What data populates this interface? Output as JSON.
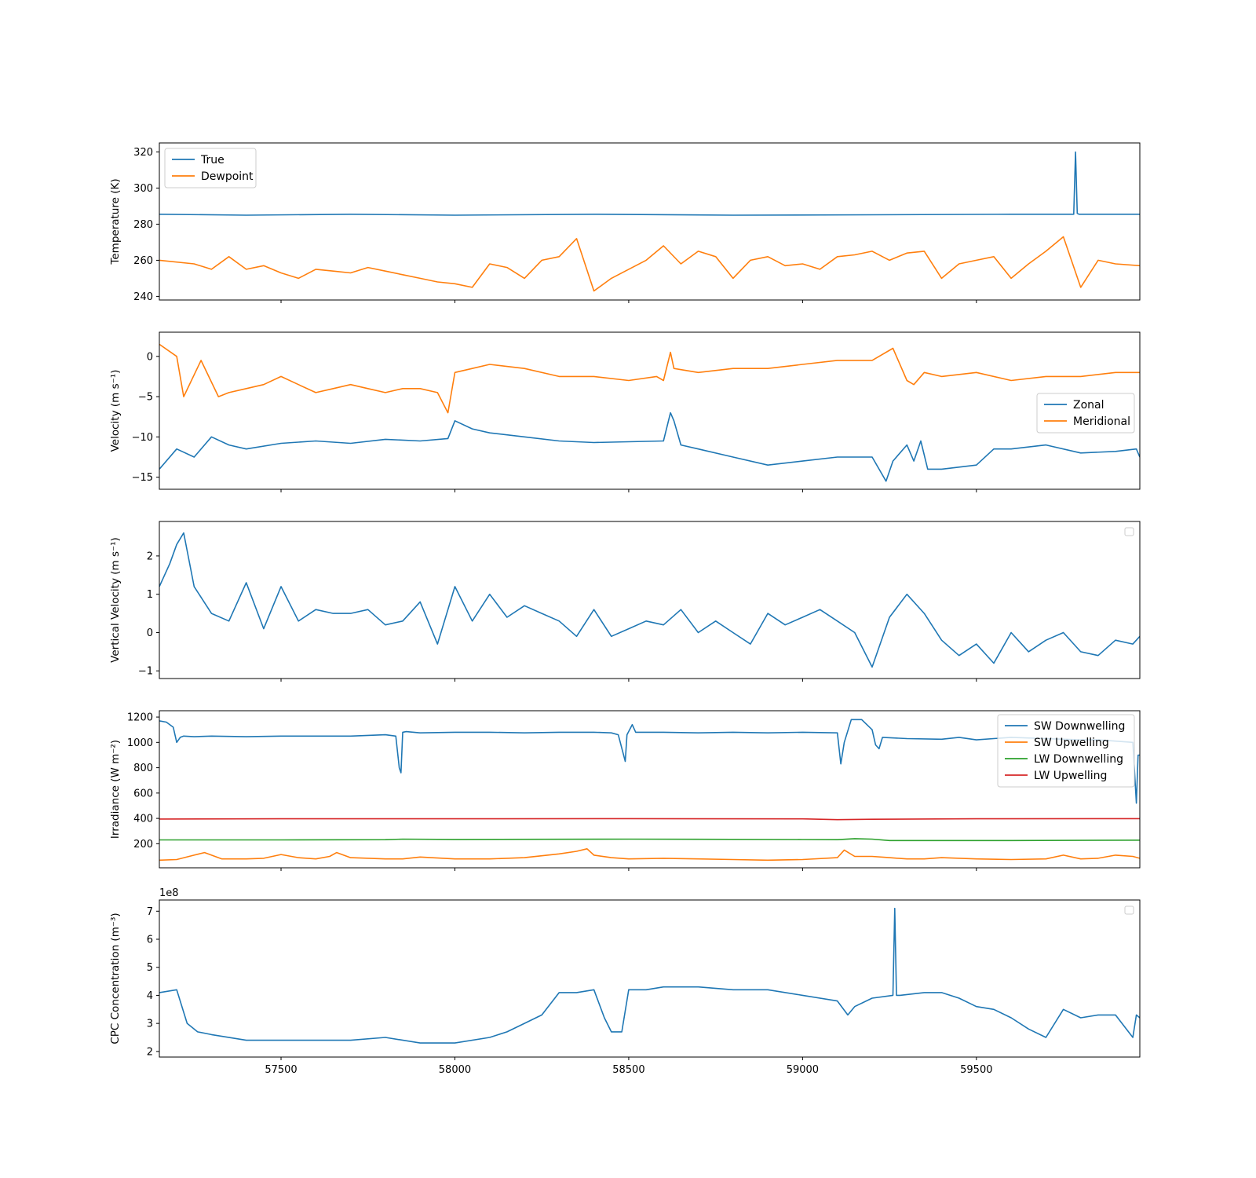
{
  "chart_data": [
    {
      "type": "line",
      "ylabel": "Temperature (K)",
      "xlim": [
        57150,
        59970
      ],
      "ylim": [
        238,
        325
      ],
      "yticks": [
        240,
        260,
        280,
        300,
        320
      ],
      "legend_position": "upper-left",
      "series": [
        {
          "name": "True",
          "color": "#1f77b4",
          "x": [
            57150,
            57400,
            57700,
            58000,
            58400,
            58800,
            59200,
            59600,
            59780,
            59785,
            59790,
            59795,
            59800,
            59970
          ],
          "y": [
            285.5,
            285,
            285.5,
            285,
            285.5,
            285,
            285.2,
            285.5,
            285.5,
            320,
            286,
            285.5,
            285.5,
            285.5
          ]
        },
        {
          "name": "Dewpoint",
          "color": "#ff7f0e",
          "x": [
            57150,
            57250,
            57300,
            57350,
            57400,
            57450,
            57500,
            57550,
            57600,
            57650,
            57700,
            57750,
            57800,
            57850,
            57900,
            57950,
            58000,
            58050,
            58100,
            58150,
            58200,
            58250,
            58300,
            58350,
            58400,
            58450,
            58500,
            58550,
            58600,
            58650,
            58700,
            58750,
            58800,
            58850,
            58900,
            58950,
            59000,
            59050,
            59100,
            59150,
            59200,
            59250,
            59300,
            59350,
            59400,
            59450,
            59500,
            59550,
            59600,
            59650,
            59700,
            59750,
            59800,
            59850,
            59900,
            59970
          ],
          "y": [
            260,
            258,
            255,
            262,
            255,
            257,
            253,
            250,
            255,
            254,
            253,
            256,
            254,
            252,
            250,
            248,
            247,
            245,
            258,
            256,
            250,
            260,
            262,
            272,
            243,
            250,
            255,
            260,
            268,
            258,
            265,
            262,
            250,
            260,
            262,
            257,
            258,
            255,
            262,
            263,
            265,
            260,
            264,
            265,
            250,
            258,
            260,
            262,
            250,
            258,
            265,
            273,
            245,
            260,
            258,
            257
          ]
        }
      ]
    },
    {
      "type": "line",
      "ylabel": "Velocity (m s⁻¹)",
      "xlim": [
        57150,
        59970
      ],
      "ylim": [
        -16.5,
        3
      ],
      "yticks": [
        0,
        -5,
        -10,
        -15
      ],
      "legend_position": "center-right",
      "series": [
        {
          "name": "Zonal",
          "color": "#1f77b4",
          "x": [
            57150,
            57200,
            57250,
            57300,
            57350,
            57400,
            57500,
            57600,
            57700,
            57800,
            57900,
            57980,
            58000,
            58050,
            58100,
            58200,
            58300,
            58400,
            58500,
            58600,
            58620,
            58630,
            58650,
            58700,
            58800,
            58900,
            59000,
            59100,
            59200,
            59240,
            59260,
            59300,
            59320,
            59340,
            59360,
            59400,
            59500,
            59550,
            59600,
            59700,
            59800,
            59900,
            59960,
            59970
          ],
          "y": [
            -14,
            -11.5,
            -12.5,
            -10,
            -11,
            -11.5,
            -10.8,
            -10.5,
            -10.8,
            -10.3,
            -10.5,
            -10.2,
            -8,
            -9,
            -9.5,
            -10,
            -10.5,
            -10.7,
            -10.6,
            -10.5,
            -7,
            -8,
            -11,
            -11.5,
            -12.5,
            -13.5,
            -13,
            -12.5,
            -12.5,
            -15.5,
            -13,
            -11,
            -13,
            -10.5,
            -14,
            -14,
            -13.5,
            -11.5,
            -11.5,
            -11,
            -12,
            -11.8,
            -11.5,
            -12.5
          ]
        },
        {
          "name": "Meridional",
          "color": "#ff7f0e",
          "x": [
            57150,
            57200,
            57220,
            57270,
            57320,
            57350,
            57400,
            57450,
            57500,
            57550,
            57600,
            57650,
            57700,
            57750,
            57800,
            57850,
            57900,
            57950,
            57980,
            58000,
            58050,
            58100,
            58200,
            58300,
            58400,
            58500,
            58580,
            58600,
            58620,
            58630,
            58700,
            58800,
            58900,
            59000,
            59100,
            59200,
            59260,
            59300,
            59320,
            59350,
            59400,
            59500,
            59600,
            59700,
            59800,
            59900,
            59950,
            59970
          ],
          "y": [
            1.5,
            0,
            -5,
            -0.5,
            -5,
            -4.5,
            -4,
            -3.5,
            -2.5,
            -3.5,
            -4.5,
            -4,
            -3.5,
            -4,
            -4.5,
            -4,
            -4,
            -4.5,
            -7,
            -2,
            -1.5,
            -1,
            -1.5,
            -2.5,
            -2.5,
            -3,
            -2.5,
            -3,
            0.5,
            -1.5,
            -2,
            -1.5,
            -1.5,
            -1,
            -0.5,
            -0.5,
            1,
            -3,
            -3.5,
            -2,
            -2.5,
            -2,
            -3,
            -2.5,
            -2.5,
            -2,
            -2,
            -2
          ]
        }
      ]
    },
    {
      "type": "line",
      "ylabel": "Vertical Velocity (m s⁻¹)",
      "xlim": [
        57150,
        59970
      ],
      "ylim": [
        -1.2,
        2.9
      ],
      "yticks": [
        2,
        1,
        0,
        -1
      ],
      "legend_position": "upper-right",
      "series": [
        {
          "color": "#1f77b4",
          "x": [
            57150,
            57180,
            57200,
            57220,
            57250,
            57300,
            57350,
            57400,
            57450,
            57500,
            57550,
            57600,
            57650,
            57700,
            57750,
            57800,
            57850,
            57900,
            57950,
            58000,
            58050,
            58100,
            58150,
            58200,
            58250,
            58300,
            58350,
            58400,
            58450,
            58500,
            58550,
            58600,
            58650,
            58700,
            58750,
            58800,
            58850,
            58900,
            58950,
            59000,
            59050,
            59100,
            59150,
            59200,
            59250,
            59300,
            59350,
            59400,
            59450,
            59500,
            59550,
            59600,
            59650,
            59700,
            59750,
            59800,
            59850,
            59900,
            59950,
            59970
          ],
          "y": [
            1.2,
            1.8,
            2.3,
            2.6,
            1.2,
            0.5,
            0.3,
            1.3,
            0.1,
            1.2,
            0.3,
            0.6,
            0.5,
            0.5,
            0.6,
            0.2,
            0.3,
            0.8,
            -0.3,
            1.2,
            0.3,
            1.0,
            0.4,
            0.7,
            0.5,
            0.3,
            -0.1,
            0.6,
            -0.1,
            0.1,
            0.3,
            0.2,
            0.6,
            0,
            0.3,
            0,
            -0.3,
            0.5,
            0.2,
            0.4,
            0.6,
            0.3,
            0,
            -0.9,
            0.4,
            1.0,
            0.5,
            -0.2,
            -0.6,
            -0.3,
            -0.8,
            0,
            -0.5,
            -0.2,
            0,
            -0.5,
            -0.6,
            -0.2,
            -0.3,
            -0.1
          ]
        }
      ]
    },
    {
      "type": "line",
      "ylabel": "Irradiance (W m⁻²)",
      "xlim": [
        57150,
        59970
      ],
      "ylim": [
        10,
        1250
      ],
      "yticks": [
        1200,
        1000,
        800,
        600,
        400,
        200
      ],
      "legend_position": "upper-right",
      "series": [
        {
          "name": "SW Downwelling",
          "color": "#1f77b4",
          "x": [
            57150,
            57170,
            57190,
            57200,
            57210,
            57220,
            57250,
            57300,
            57400,
            57500,
            57600,
            57700,
            57800,
            57830,
            57840,
            57845,
            57850,
            57860,
            57900,
            58000,
            58100,
            58200,
            58300,
            58400,
            58450,
            58470,
            58490,
            58495,
            58510,
            58520,
            58600,
            58700,
            58800,
            58900,
            59000,
            59100,
            59110,
            59120,
            59140,
            59170,
            59200,
            59210,
            59220,
            59230,
            59300,
            59400,
            59450,
            59500,
            59600,
            59700,
            59800,
            59850,
            59900,
            59950,
            59960,
            59965,
            59970
          ],
          "y": [
            1170,
            1160,
            1120,
            1000,
            1040,
            1050,
            1045,
            1050,
            1045,
            1050,
            1050,
            1050,
            1060,
            1050,
            800,
            760,
            1080,
            1085,
            1075,
            1080,
            1080,
            1075,
            1080,
            1080,
            1075,
            1060,
            850,
            1060,
            1140,
            1080,
            1080,
            1075,
            1080,
            1075,
            1080,
            1075,
            830,
            1000,
            1180,
            1180,
            1100,
            980,
            950,
            1040,
            1030,
            1025,
            1040,
            1020,
            1040,
            1030,
            1020,
            1020,
            1010,
            1000,
            520,
            900,
            900
          ]
        },
        {
          "name": "SW Upwelling",
          "color": "#ff7f0e",
          "x": [
            57150,
            57200,
            57250,
            57280,
            57330,
            57400,
            57450,
            57500,
            57550,
            57600,
            57640,
            57660,
            57700,
            57800,
            57850,
            57900,
            58000,
            58100,
            58200,
            58250,
            58300,
            58350,
            58380,
            58400,
            58450,
            58500,
            58600,
            58700,
            58800,
            58900,
            59000,
            59100,
            59120,
            59150,
            59200,
            59250,
            59300,
            59350,
            59400,
            59500,
            59600,
            59700,
            59750,
            59800,
            59850,
            59900,
            59950,
            59970
          ],
          "y": [
            70,
            75,
            110,
            130,
            80,
            80,
            85,
            115,
            90,
            80,
            100,
            130,
            90,
            80,
            80,
            95,
            80,
            80,
            90,
            105,
            120,
            140,
            160,
            110,
            90,
            80,
            85,
            80,
            75,
            70,
            75,
            90,
            150,
            100,
            100,
            90,
            80,
            80,
            90,
            80,
            75,
            80,
            110,
            80,
            85,
            110,
            100,
            85
          ]
        },
        {
          "name": "LW Downwelling",
          "color": "#2ca02c",
          "x": [
            57150,
            57500,
            57800,
            57850,
            58000,
            58500,
            59000,
            59100,
            59150,
            59200,
            59250,
            59600,
            59970
          ],
          "y": [
            230,
            230,
            232,
            236,
            234,
            236,
            233,
            232,
            240,
            236,
            225,
            225,
            228
          ]
        },
        {
          "name": "LW Upwelling",
          "color": "#d62728",
          "x": [
            57150,
            57500,
            58000,
            58500,
            59000,
            59100,
            59200,
            59500,
            59970
          ],
          "y": [
            395,
            397,
            397,
            398,
            396,
            390,
            393,
            397,
            398
          ]
        }
      ]
    },
    {
      "type": "line",
      "ylabel": "CPC Concentration (m⁻³)",
      "offset_text": "1e8",
      "xlim": [
        57150,
        59970
      ],
      "xlabel": "",
      "xticks": [
        57500,
        58000,
        58500,
        59000,
        59500
      ],
      "ylim": [
        1.8,
        7.4
      ],
      "yticks": [
        7,
        6,
        5,
        4,
        3,
        2
      ],
      "legend_position": "upper-right",
      "series": [
        {
          "color": "#1f77b4",
          "x": [
            57150,
            57200,
            57230,
            57260,
            57300,
            57400,
            57500,
            57600,
            57700,
            57800,
            57900,
            58000,
            58100,
            58150,
            58200,
            58250,
            58300,
            58350,
            58400,
            58430,
            58450,
            58480,
            58500,
            58550,
            58600,
            58700,
            58800,
            58900,
            59000,
            59100,
            59130,
            59150,
            59200,
            59260,
            59265,
            59270,
            59280,
            59350,
            59400,
            59450,
            59500,
            59550,
            59600,
            59650,
            59700,
            59750,
            59800,
            59850,
            59900,
            59950,
            59960,
            59970
          ],
          "y": [
            4.1,
            4.2,
            3.0,
            2.7,
            2.6,
            2.4,
            2.4,
            2.4,
            2.4,
            2.5,
            2.3,
            2.3,
            2.5,
            2.7,
            3.0,
            3.3,
            4.1,
            4.1,
            4.2,
            3.2,
            2.7,
            2.7,
            4.2,
            4.2,
            4.3,
            4.3,
            4.2,
            4.2,
            4.0,
            3.8,
            3.3,
            3.6,
            3.9,
            4.0,
            7.1,
            4.0,
            4.0,
            4.1,
            4.1,
            3.9,
            3.6,
            3.5,
            3.2,
            2.8,
            2.5,
            3.5,
            3.2,
            3.3,
            3.3,
            2.5,
            3.3,
            3.2
          ]
        }
      ]
    }
  ]
}
